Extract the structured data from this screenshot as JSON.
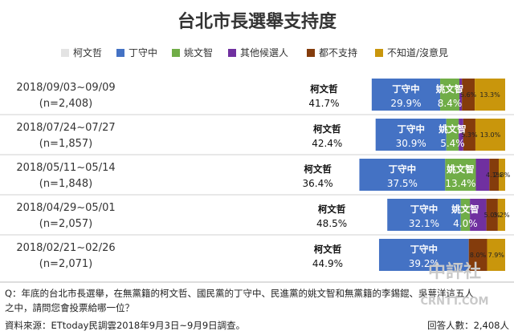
{
  "chart_data": {
    "type": "bar",
    "stacked": true,
    "orientation": "horizontal",
    "title": "台北市長選舉支持度",
    "legend_position": "top",
    "series": [
      {
        "name": "柯文哲",
        "color": "#e3e3e3"
      },
      {
        "name": "丁守中",
        "color": "#4472c4"
      },
      {
        "name": "姚文智",
        "color": "#70ad47"
      },
      {
        "name": "其他候選人",
        "color": "#7030a0"
      },
      {
        "name": "都不支持",
        "color": "#843c0c"
      },
      {
        "name": "不知道/沒意見",
        "color": "#c9960c"
      }
    ],
    "rows": [
      {
        "period": "2018/09/03~09/09",
        "n": "(n=2,408)",
        "values": [
          41.7,
          29.9,
          8.4,
          1.1,
          5.6,
          13.3
        ],
        "labels": [
          "41.7%",
          "29.9%",
          "8.4%",
          "",
          "5.6%",
          "13.3%"
        ]
      },
      {
        "period": "2018/07/24~07/27",
        "n": "(n=1,857)",
        "values": [
          42.4,
          30.9,
          5.4,
          2.0,
          5.3,
          13.0
        ],
        "labels": [
          "42.4%",
          "30.9%",
          "5.4%",
          "",
          "5.3%",
          "13.0%"
        ]
      },
      {
        "period": "2018/05/11~05/14",
        "n": "(n=1,848)",
        "values": [
          36.4,
          37.5,
          13.4,
          5.9,
          4.1,
          2.8
        ],
        "labels": [
          "36.4%",
          "37.5%",
          "13.4%",
          "",
          "4.1%",
          "2.8%"
        ]
      },
      {
        "period": "2018/04/29~05/01",
        "n": "(n=2,057)",
        "values": [
          48.5,
          32.1,
          4.0,
          7.2,
          5.0,
          3.2
        ],
        "labels": [
          "48.5%",
          "32.1%",
          "4.0%",
          "",
          "5.0%",
          "3.2%"
        ]
      },
      {
        "period": "2018/02/21~02/26",
        "n": "(n=2,071)",
        "values": [
          44.9,
          39.2,
          0,
          0,
          8.0,
          7.9
        ],
        "labels": [
          "44.9%",
          "39.2%",
          "",
          "",
          "8.0%",
          "7.9%"
        ]
      }
    ]
  },
  "footer": {
    "question": "Q：年底的台北市長選舉，在無黨籍的柯文哲、國民黨的丁守中、民進黨的姚文智和無黨籍的李錫錕、吳萼洋這五人",
    "question2": "之中，請問您會投票給哪一位？",
    "source": "資料來源：ETtoday民調雲2018年9月3日~9月9日調查。",
    "respondents": "回答人數：2,408人"
  },
  "watermark": {
    "main": "中評社",
    "sub": "CRNTT.COM"
  }
}
